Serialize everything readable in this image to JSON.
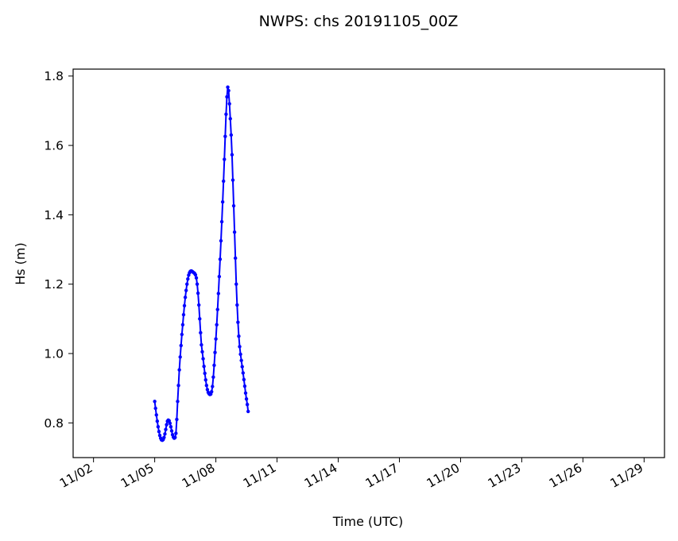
{
  "chart_data": {
    "type": "line",
    "title": "NWPS: chs 20191105_00Z",
    "xlabel": "Time (UTC)",
    "ylabel": "Hs (m)",
    "x_unit": "date",
    "xlim": [
      "2019-11-01",
      "2019-11-30"
    ],
    "ylim": [
      0.7,
      1.82
    ],
    "x_ticks": [
      {
        "label": "11/02",
        "date": "2019-11-02"
      },
      {
        "label": "11/05",
        "date": "2019-11-05"
      },
      {
        "label": "11/08",
        "date": "2019-11-08"
      },
      {
        "label": "11/11",
        "date": "2019-11-11"
      },
      {
        "label": "11/14",
        "date": "2019-11-14"
      },
      {
        "label": "11/17",
        "date": "2019-11-17"
      },
      {
        "label": "11/20",
        "date": "2019-11-20"
      },
      {
        "label": "11/23",
        "date": "2019-11-23"
      },
      {
        "label": "11/26",
        "date": "2019-11-26"
      },
      {
        "label": "11/29",
        "date": "2019-11-29"
      }
    ],
    "y_ticks": [
      {
        "label": "0.8",
        "value": 0.8
      },
      {
        "label": "1.0",
        "value": 1.0
      },
      {
        "label": "1.2",
        "value": 1.2
      },
      {
        "label": "1.4",
        "value": 1.4
      },
      {
        "label": "1.6",
        "value": 1.6
      },
      {
        "label": "1.8",
        "value": 1.8
      }
    ],
    "grid": false,
    "series": [
      {
        "color": "#0000ff",
        "marker": "dot",
        "points": [
          {
            "x": "2019-11-05T00:00",
            "y": 0.862
          },
          {
            "x": "2019-11-05T01:00",
            "y": 0.842
          },
          {
            "x": "2019-11-05T02:00",
            "y": 0.823
          },
          {
            "x": "2019-11-05T03:00",
            "y": 0.805
          },
          {
            "x": "2019-11-05T04:00",
            "y": 0.789
          },
          {
            "x": "2019-11-05T05:00",
            "y": 0.775
          },
          {
            "x": "2019-11-05T06:00",
            "y": 0.764
          },
          {
            "x": "2019-11-05T07:00",
            "y": 0.756
          },
          {
            "x": "2019-11-05T08:00",
            "y": 0.751
          },
          {
            "x": "2019-11-05T09:00",
            "y": 0.75
          },
          {
            "x": "2019-11-05T10:00",
            "y": 0.752
          },
          {
            "x": "2019-11-05T11:00",
            "y": 0.758
          },
          {
            "x": "2019-11-05T12:00",
            "y": 0.768
          },
          {
            "x": "2019-11-05T13:00",
            "y": 0.781
          },
          {
            "x": "2019-11-05T14:00",
            "y": 0.795
          },
          {
            "x": "2019-11-05T15:00",
            "y": 0.805
          },
          {
            "x": "2019-11-05T16:00",
            "y": 0.808
          },
          {
            "x": "2019-11-05T17:00",
            "y": 0.806
          },
          {
            "x": "2019-11-05T18:00",
            "y": 0.799
          },
          {
            "x": "2019-11-05T19:00",
            "y": 0.789
          },
          {
            "x": "2019-11-05T20:00",
            "y": 0.777
          },
          {
            "x": "2019-11-05T21:00",
            "y": 0.766
          },
          {
            "x": "2019-11-05T22:00",
            "y": 0.759
          },
          {
            "x": "2019-11-05T23:00",
            "y": 0.756
          },
          {
            "x": "2019-11-06T00:00",
            "y": 0.758
          },
          {
            "x": "2019-11-06T01:00",
            "y": 0.77
          },
          {
            "x": "2019-11-06T02:00",
            "y": 0.81
          },
          {
            "x": "2019-11-06T03:00",
            "y": 0.862
          },
          {
            "x": "2019-11-06T04:00",
            "y": 0.908
          },
          {
            "x": "2019-11-06T05:00",
            "y": 0.953
          },
          {
            "x": "2019-11-06T06:00",
            "y": 0.99
          },
          {
            "x": "2019-11-06T07:00",
            "y": 1.023
          },
          {
            "x": "2019-11-06T08:00",
            "y": 1.055
          },
          {
            "x": "2019-11-06T09:00",
            "y": 1.083
          },
          {
            "x": "2019-11-06T10:00",
            "y": 1.112
          },
          {
            "x": "2019-11-06T11:00",
            "y": 1.138
          },
          {
            "x": "2019-11-06T12:00",
            "y": 1.162
          },
          {
            "x": "2019-11-06T13:00",
            "y": 1.182
          },
          {
            "x": "2019-11-06T14:00",
            "y": 1.2
          },
          {
            "x": "2019-11-06T15:00",
            "y": 1.215
          },
          {
            "x": "2019-11-06T16:00",
            "y": 1.226
          },
          {
            "x": "2019-11-06T17:00",
            "y": 1.233
          },
          {
            "x": "2019-11-06T18:00",
            "y": 1.237
          },
          {
            "x": "2019-11-06T19:00",
            "y": 1.238
          },
          {
            "x": "2019-11-06T20:00",
            "y": 1.237
          },
          {
            "x": "2019-11-06T21:00",
            "y": 1.235
          },
          {
            "x": "2019-11-06T22:00",
            "y": 1.233
          },
          {
            "x": "2019-11-06T23:00",
            "y": 1.231
          },
          {
            "x": "2019-11-07T00:00",
            "y": 1.227
          },
          {
            "x": "2019-11-07T01:00",
            "y": 1.218
          },
          {
            "x": "2019-11-07T02:00",
            "y": 1.2
          },
          {
            "x": "2019-11-07T03:00",
            "y": 1.174
          },
          {
            "x": "2019-11-07T04:00",
            "y": 1.14
          },
          {
            "x": "2019-11-07T05:00",
            "y": 1.1
          },
          {
            "x": "2019-11-07T06:00",
            "y": 1.06
          },
          {
            "x": "2019-11-07T07:00",
            "y": 1.025
          },
          {
            "x": "2019-11-07T08:00",
            "y": 1.005
          },
          {
            "x": "2019-11-07T09:00",
            "y": 0.985
          },
          {
            "x": "2019-11-07T10:00",
            "y": 0.963
          },
          {
            "x": "2019-11-07T11:00",
            "y": 0.943
          },
          {
            "x": "2019-11-07T12:00",
            "y": 0.924
          },
          {
            "x": "2019-11-07T13:00",
            "y": 0.908
          },
          {
            "x": "2019-11-07T14:00",
            "y": 0.896
          },
          {
            "x": "2019-11-07T15:00",
            "y": 0.888
          },
          {
            "x": "2019-11-07T16:00",
            "y": 0.884
          },
          {
            "x": "2019-11-07T17:00",
            "y": 0.882
          },
          {
            "x": "2019-11-07T18:00",
            "y": 0.883
          },
          {
            "x": "2019-11-07T19:00",
            "y": 0.89
          },
          {
            "x": "2019-11-07T20:00",
            "y": 0.905
          },
          {
            "x": "2019-11-07T21:00",
            "y": 0.932
          },
          {
            "x": "2019-11-07T22:00",
            "y": 0.966
          },
          {
            "x": "2019-11-07T23:00",
            "y": 1.003
          },
          {
            "x": "2019-11-08T00:00",
            "y": 1.042
          },
          {
            "x": "2019-11-08T01:00",
            "y": 1.083
          },
          {
            "x": "2019-11-08T02:00",
            "y": 1.127
          },
          {
            "x": "2019-11-08T03:00",
            "y": 1.173
          },
          {
            "x": "2019-11-08T04:00",
            "y": 1.222
          },
          {
            "x": "2019-11-08T05:00",
            "y": 1.272
          },
          {
            "x": "2019-11-08T06:00",
            "y": 1.325
          },
          {
            "x": "2019-11-08T07:00",
            "y": 1.38
          },
          {
            "x": "2019-11-08T08:00",
            "y": 1.437
          },
          {
            "x": "2019-11-08T09:00",
            "y": 1.497
          },
          {
            "x": "2019-11-08T10:00",
            "y": 1.56
          },
          {
            "x": "2019-11-08T11:00",
            "y": 1.626
          },
          {
            "x": "2019-11-08T12:00",
            "y": 1.69
          },
          {
            "x": "2019-11-08T13:00",
            "y": 1.74
          },
          {
            "x": "2019-11-08T14:00",
            "y": 1.768
          },
          {
            "x": "2019-11-08T15:00",
            "y": 1.758
          },
          {
            "x": "2019-11-08T16:00",
            "y": 1.72
          },
          {
            "x": "2019-11-08T17:00",
            "y": 1.677
          },
          {
            "x": "2019-11-08T18:00",
            "y": 1.63
          },
          {
            "x": "2019-11-08T19:00",
            "y": 1.573
          },
          {
            "x": "2019-11-08T20:00",
            "y": 1.5
          },
          {
            "x": "2019-11-08T21:00",
            "y": 1.426
          },
          {
            "x": "2019-11-08T22:00",
            "y": 1.35
          },
          {
            "x": "2019-11-08T23:00",
            "y": 1.275
          },
          {
            "x": "2019-11-09T00:00",
            "y": 1.2
          },
          {
            "x": "2019-11-09T01:00",
            "y": 1.14
          },
          {
            "x": "2019-11-09T02:00",
            "y": 1.09
          },
          {
            "x": "2019-11-09T03:00",
            "y": 1.05
          },
          {
            "x": "2019-11-09T04:00",
            "y": 1.02
          },
          {
            "x": "2019-11-09T05:00",
            "y": 0.998
          },
          {
            "x": "2019-11-09T06:00",
            "y": 0.98
          },
          {
            "x": "2019-11-09T07:00",
            "y": 0.962
          },
          {
            "x": "2019-11-09T08:00",
            "y": 0.944
          },
          {
            "x": "2019-11-09T09:00",
            "y": 0.925
          },
          {
            "x": "2019-11-09T10:00",
            "y": 0.906
          },
          {
            "x": "2019-11-09T11:00",
            "y": 0.886
          },
          {
            "x": "2019-11-09T12:00",
            "y": 0.869
          },
          {
            "x": "2019-11-09T13:00",
            "y": 0.853
          },
          {
            "x": "2019-11-09T14:00",
            "y": 0.833
          }
        ]
      }
    ]
  }
}
